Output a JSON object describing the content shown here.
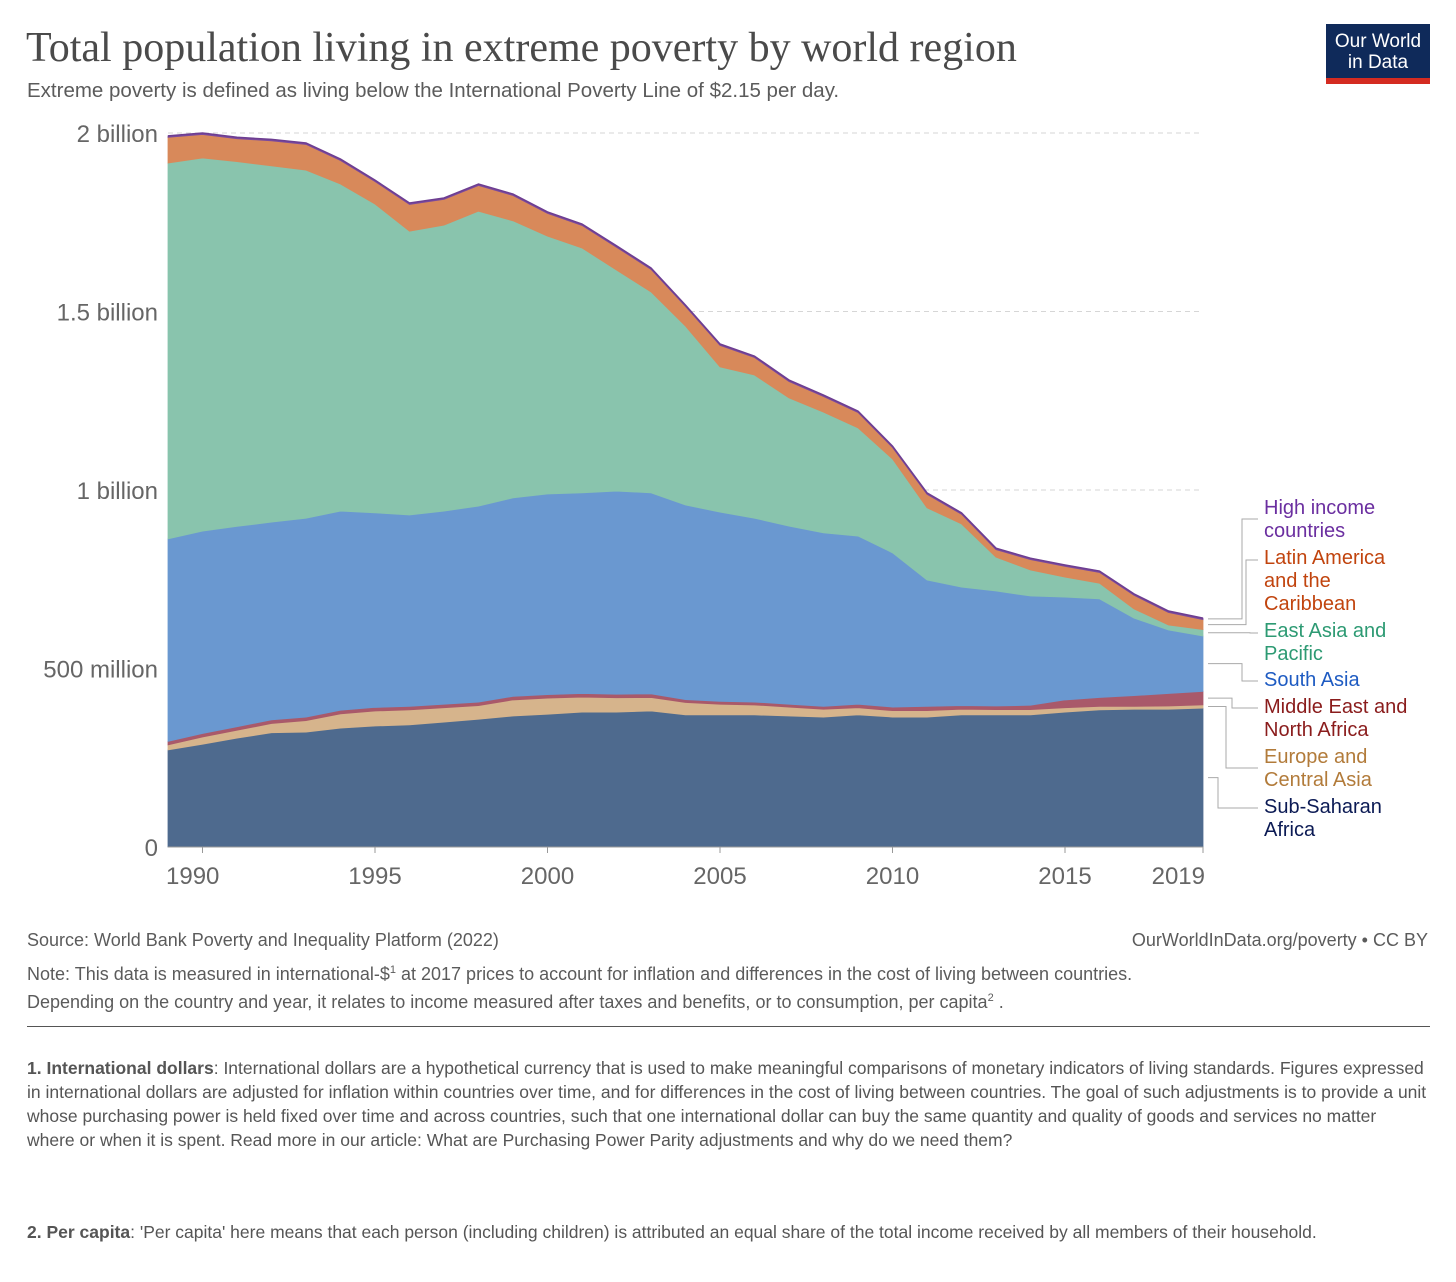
{
  "title": "Total population living in extreme poverty by world region",
  "subtitle": "Extreme poverty is defined as living below the International Poverty Line of $2.15 per day.",
  "logo": {
    "line1": "Our World",
    "line2": "in Data"
  },
  "chart_data": {
    "type": "area",
    "stacked": true,
    "title": "Total population living in extreme poverty by world region",
    "xlabel": "",
    "ylabel": "",
    "xlim": [
      1989,
      2019
    ],
    "ylim": [
      0,
      2000000000
    ],
    "unit": "millions of people",
    "y_ticks": [
      {
        "value": 0,
        "label": "0"
      },
      {
        "value": 500,
        "label": "500 million"
      },
      {
        "value": 1000,
        "label": "1 billion"
      },
      {
        "value": 1500,
        "label": "1.5 billion"
      },
      {
        "value": 2000,
        "label": "2 billion"
      }
    ],
    "x_ticks": [
      {
        "value": 1990,
        "label": "1990"
      },
      {
        "value": 1995,
        "label": "1995"
      },
      {
        "value": 2000,
        "label": "2000"
      },
      {
        "value": 2005,
        "label": "2005"
      },
      {
        "value": 2010,
        "label": "2010"
      },
      {
        "value": 2015,
        "label": "2015"
      },
      {
        "value": 2019,
        "label": "2019"
      }
    ],
    "x": [
      1989,
      1990,
      1991,
      1992,
      1993,
      1994,
      1995,
      1996,
      1997,
      1998,
      1999,
      2000,
      2001,
      2002,
      2003,
      2004,
      2005,
      2006,
      2007,
      2008,
      2009,
      2010,
      2011,
      2012,
      2013,
      2014,
      2015,
      2016,
      2017,
      2018,
      2019
    ],
    "legend_position": "right",
    "series": [
      {
        "name": "Sub-Saharan Africa",
        "color": "#4e6a8e",
        "label_color": "#0b1a54",
        "values": [
          272,
          288,
          305,
          320,
          322,
          333,
          339,
          342,
          350,
          358,
          367,
          372,
          378,
          378,
          381,
          370,
          370,
          370,
          367,
          364,
          370,
          364,
          364,
          370,
          370,
          370,
          378,
          384,
          386,
          386,
          389
        ]
      },
      {
        "name": "Europe and Central Asia",
        "color": "#d6b48c",
        "label_color": "#b27b3a",
        "values": [
          14,
          20,
          22,
          26,
          32,
          40,
          42,
          42,
          40,
          38,
          45,
          45,
          42,
          40,
          38,
          35,
          30,
          28,
          25,
          22,
          20,
          18,
          18,
          16,
          15,
          15,
          12,
          10,
          8,
          9,
          9
        ]
      },
      {
        "name": "Middle East and North Africa",
        "color": "#a9596a",
        "label_color": "#8a1c1c",
        "values": [
          10,
          10,
          10,
          10,
          10,
          10,
          10,
          10,
          10,
          10,
          10,
          10,
          10,
          10,
          10,
          8,
          8,
          8,
          8,
          8,
          10,
          10,
          12,
          10,
          10,
          12,
          22,
          25,
          30,
          35,
          38
        ]
      },
      {
        "name": "South Asia",
        "color": "#6a98d0",
        "label_color": "#1e5bc2",
        "values": [
          567,
          567,
          561,
          554,
          557,
          558,
          545,
          536,
          541,
          549,
          556,
          562,
          562,
          569,
          563,
          545,
          530,
          515,
          499,
          486,
          471,
          432,
          354,
          332,
          322,
          306,
          288,
          276,
          217,
          178,
          155
        ]
      },
      {
        "name": "East Asia and Pacific",
        "color": "#89c4ad",
        "label_color": "#2d9a73",
        "values": [
          1053,
          1045,
          1022,
          998,
          975,
          916,
          865,
          795,
          801,
          826,
          776,
          722,
          686,
          619,
          563,
          501,
          407,
          401,
          359,
          338,
          303,
          263,
          202,
          177,
          95,
          73,
          56,
          44,
          26,
          14,
          18
        ]
      },
      {
        "name": "Latin America and the Caribbean",
        "color": "#d8895a",
        "label_color": "#c1440e",
        "values": [
          72,
          66,
          64,
          70,
          72,
          66,
          63,
          75,
          72,
          72,
          71,
          64,
          63,
          64,
          63,
          55,
          60,
          49,
          46,
          44,
          43,
          32,
          38,
          27,
          21,
          29,
          30,
          30,
          38,
          35,
          28
        ]
      },
      {
        "name": "High income countries",
        "color": "#7b4a9e",
        "label_color": "#6b2fa0",
        "values": [
          4,
          4,
          4,
          4,
          4,
          4,
          4,
          4,
          4,
          4,
          4,
          4,
          4,
          4,
          4,
          4,
          4,
          4,
          4,
          4,
          4,
          4,
          4,
          4,
          4,
          4,
          4,
          4,
          4,
          4,
          4
        ]
      }
    ]
  },
  "legend": {
    "high_income": "High income countries",
    "lac": "Latin America and the Caribbean",
    "eap": "East Asia and Pacific",
    "south_asia": "South Asia",
    "mena": "Middle East and North Africa",
    "eca": "Europe and Central Asia",
    "ssa": "Sub-Saharan Africa"
  },
  "footer": {
    "source": "Source: World Bank Poverty and Inequality Platform (2022)",
    "credit": "OurWorldInData.org/poverty • CC BY",
    "note_a": "Note: This data is measured in international-$",
    "note_sup1": "1",
    "note_b": " at 2017 prices to account for inflation and differences in the cost of living between countries.",
    "note_c": "Depending on the country and year, it relates to income measured after taxes and benefits, or to consumption, per capita",
    "note_sup2": "2",
    "note_d": " ."
  },
  "footnotes": [
    {
      "term": "1. International dollars",
      "text": ": International dollars are a hypothetical currency that is used to make meaningful comparisons of monetary indicators of living standards. Figures expressed in international dollars are adjusted for inflation within countries over time, and for differences in the cost of living between countries. The goal of such adjustments is to provide a unit whose purchasing power is held fixed over time and across countries, such that one international dollar can buy the same quantity and quality of goods and services no matter where or when it is spent. Read more in our article: What are Purchasing Power Parity adjustments and why do we need them?"
    },
    {
      "term": "2. Per capita",
      "text": ": 'Per capita' here means that each person (including children) is attributed an equal share of the total income received by all members of their household."
    }
  ]
}
